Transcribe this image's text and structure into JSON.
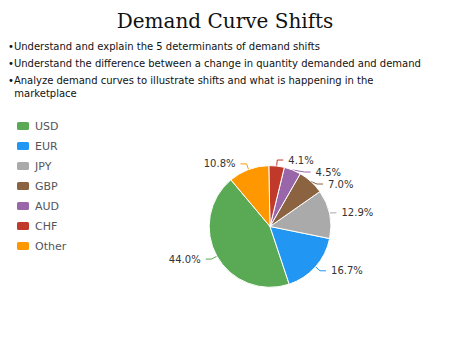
{
  "chart_data": {
    "type": "pie",
    "title": "Demand Curve Shifts",
    "annotations": [
      "•Understand and explain the 5 determinants of demand shifts",
      "•Understand the difference between a change in quantity demanded and demand",
      "•Analyze demand curves to illustrate shifts and what is happening in the\n  marketplace"
    ],
    "categories": [
      "USD",
      "EUR",
      "JPY",
      "GBP",
      "AUD",
      "CHF",
      "Other"
    ],
    "values": [
      44.0,
      16.7,
      12.9,
      7.0,
      4.5,
      4.1,
      10.8
    ],
    "value_labels": [
      "44.0%",
      "16.7%",
      "12.9%",
      "7.0%",
      "4.5%",
      "4.1%",
      "10.8%"
    ],
    "colors": [
      "#5aaa55",
      "#2196f3",
      "#aaaaaa",
      "#8B6340",
      "#9966aa",
      "#c0392b",
      "#ff9800"
    ],
    "legend": "upper left",
    "data_labels": true
  }
}
